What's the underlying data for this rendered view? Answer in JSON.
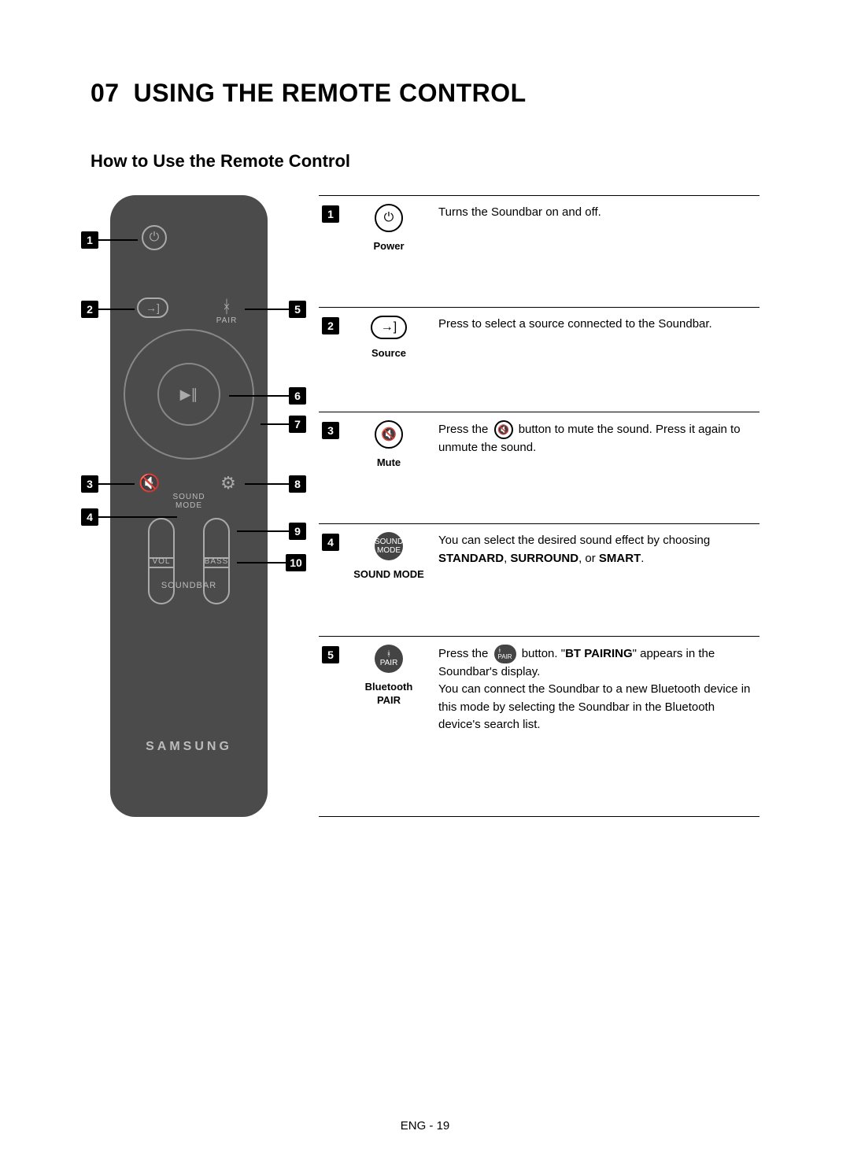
{
  "section": {
    "number": "07",
    "title": "USING THE REMOTE CONTROL"
  },
  "subtitle": "How to Use the Remote Control",
  "remote": {
    "pair_label": "PAIR",
    "sound_mode_label": "SOUND\nMODE",
    "vol_label": "VOL",
    "bass_label": "BASS",
    "soundbar_label": "SOUNDBAR",
    "brand": "SAMSUNG",
    "callouts": [
      "1",
      "2",
      "3",
      "4",
      "5",
      "6",
      "7",
      "8",
      "9",
      "10"
    ]
  },
  "table": {
    "rows": [
      {
        "num": "1",
        "icon_glyph": "⏻",
        "icon_style": "circle",
        "caption": "Power",
        "desc_parts": [
          "Turns the Soundbar on and off."
        ]
      },
      {
        "num": "2",
        "icon_glyph": "→]",
        "icon_style": "pill",
        "caption": "Source",
        "desc_parts": [
          "Press to select a source connected to the Soundbar."
        ]
      },
      {
        "num": "3",
        "icon_glyph": "🔇",
        "icon_style": "circle",
        "caption": "Mute",
        "desc_pre": "Press the ",
        "inline_icon_glyph": "🔇",
        "inline_icon_style": "outline",
        "desc_post": " button to mute the sound. Press it again to unmute the sound."
      },
      {
        "num": "4",
        "icon_text": "SOUND\nMODE",
        "icon_style": "filled",
        "caption": "SOUND MODE",
        "desc_pre": "You can select the desired sound effect by choosing ",
        "bold1": "STANDARD",
        "mid1": ", ",
        "bold2": "SURROUND",
        "mid2": ", or ",
        "bold3": "SMART",
        "desc_post": "."
      },
      {
        "num": "5",
        "icon_text": "ᚼ\nPAIR",
        "icon_style": "filled",
        "caption": "Bluetooth PAIR",
        "desc_pre": "Press the ",
        "inline_icon_text": "ᚼ\nPAIR",
        "inline_icon_style": "filled",
        "desc_mid1": " button. \"",
        "bold1": "BT PAIRING",
        "desc_post": "\" appears in the Soundbar's display.\nYou can connect the Soundbar to a new Bluetooth device in this mode by selecting the Soundbar in the Bluetooth device's search list."
      }
    ]
  },
  "footer": "ENG - 19"
}
